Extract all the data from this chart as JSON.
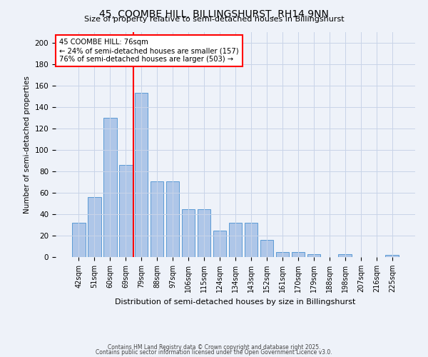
{
  "title": "45, COOMBE HILL, BILLINGSHURST, RH14 9NN",
  "subtitle": "Size of property relative to semi-detached houses in Billingshurst",
  "xlabel": "Distribution of semi-detached houses by size in Billingshurst",
  "ylabel": "Number of semi-detached properties",
  "bar_labels": [
    "42sqm",
    "51sqm",
    "60sqm",
    "69sqm",
    "79sqm",
    "88sqm",
    "97sqm",
    "106sqm",
    "115sqm",
    "124sqm",
    "134sqm",
    "143sqm",
    "152sqm",
    "161sqm",
    "170sqm",
    "179sqm",
    "188sqm",
    "198sqm",
    "207sqm",
    "216sqm",
    "225sqm"
  ],
  "bar_values": [
    32,
    56,
    130,
    86,
    153,
    71,
    71,
    45,
    45,
    25,
    32,
    32,
    16,
    5,
    5,
    3,
    0,
    3,
    0,
    0,
    2
  ],
  "bar_color": "#aec6e8",
  "bar_edge_color": "#5b9bd5",
  "vline_color": "red",
  "property_label": "45 COOMBE HILL: 76sqm",
  "smaller_pct": 24,
  "smaller_count": 157,
  "larger_pct": 76,
  "larger_count": 503,
  "ylim": [
    0,
    210
  ],
  "yticks": [
    0,
    20,
    40,
    60,
    80,
    100,
    120,
    140,
    160,
    180,
    200
  ],
  "background_color": "#eef2f9",
  "grid_color": "#c8d4e8",
  "footer_line1": "Contains HM Land Registry data © Crown copyright and database right 2025.",
  "footer_line2": "Contains public sector information licensed under the Open Government Licence v3.0."
}
